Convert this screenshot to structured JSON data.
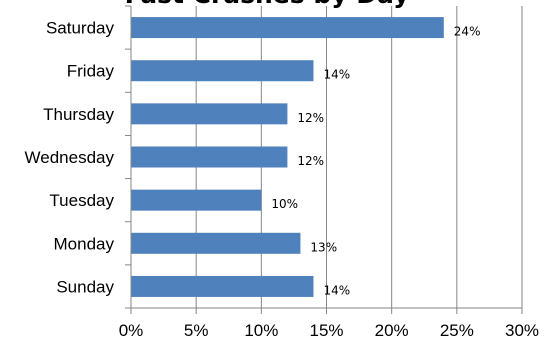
{
  "chart_data": {
    "type": "bar",
    "orientation": "horizontal",
    "title": "Fast Crashes by Day",
    "xlabel": "",
    "ylabel": "",
    "categories": [
      "Saturday",
      "Friday",
      "Thursday",
      "Wednesday",
      "Tuesday",
      "Monday",
      "Sunday"
    ],
    "values": [
      24,
      14,
      12,
      12,
      10,
      13,
      14
    ],
    "value_labels": [
      "24%",
      "14%",
      "12%",
      "12%",
      "10%",
      "13%",
      "14%"
    ],
    "xlim": [
      0,
      30
    ],
    "x_ticks": [
      "0%",
      "5%",
      "10%",
      "15%",
      "20%",
      "25%",
      "30%"
    ],
    "grid": true,
    "legend": "none",
    "bar_color": "#4F81BD",
    "grid_color": "#868686"
  }
}
